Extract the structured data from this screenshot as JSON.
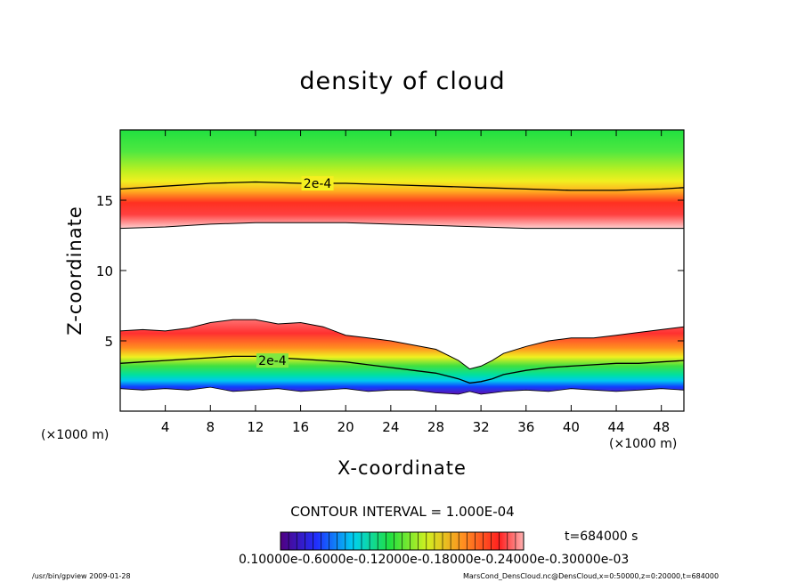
{
  "title": "density of cloud",
  "chart_data": {
    "type": "heatmap",
    "title": "density of cloud",
    "xlabel": "X-coordinate",
    "ylabel": "Z-coordinate",
    "x_unit": "(×1000 m)",
    "xlim": [
      0,
      50
    ],
    "ylim": [
      0,
      20
    ],
    "x_ticks": [
      4,
      8,
      12,
      16,
      20,
      24,
      28,
      32,
      36,
      40,
      44,
      48
    ],
    "y_ticks": [
      5,
      10,
      15
    ],
    "upper_layer": {
      "x": [
        0,
        4,
        8,
        12,
        16,
        20,
        24,
        28,
        32,
        36,
        40,
        44,
        48,
        50
      ],
      "bottom_z": [
        13.0,
        13.1,
        13.3,
        13.4,
        13.4,
        13.4,
        13.3,
        13.2,
        13.1,
        13.0,
        13.0,
        13.0,
        13.0,
        13.0
      ],
      "contour_2e4_z": [
        15.8,
        16.0,
        16.2,
        16.3,
        16.2,
        16.2,
        16.1,
        16.0,
        15.9,
        15.8,
        15.7,
        15.7,
        15.8,
        15.9
      ]
    },
    "lower_layer": {
      "x": [
        0,
        2,
        4,
        6,
        8,
        10,
        12,
        14,
        16,
        18,
        20,
        22,
        24,
        26,
        28,
        30,
        31,
        32,
        33,
        34,
        36,
        38,
        40,
        42,
        44,
        46,
        48,
        50
      ],
      "top_z": [
        5.7,
        5.8,
        5.7,
        5.9,
        6.3,
        6.5,
        6.5,
        6.2,
        6.3,
        6.0,
        5.4,
        5.2,
        5.0,
        4.7,
        4.4,
        3.6,
        3.0,
        3.2,
        3.6,
        4.1,
        4.6,
        5.0,
        5.2,
        5.2,
        5.4,
        5.6,
        5.8,
        6.0
      ],
      "contour_2e4_z": [
        3.4,
        3.5,
        3.6,
        3.7,
        3.8,
        3.9,
        3.9,
        3.8,
        3.7,
        3.6,
        3.5,
        3.3,
        3.1,
        2.9,
        2.7,
        2.3,
        2.0,
        2.1,
        2.3,
        2.6,
        2.9,
        3.1,
        3.2,
        3.3,
        3.4,
        3.4,
        3.5,
        3.6
      ],
      "bottom_z": [
        1.6,
        1.5,
        1.6,
        1.5,
        1.7,
        1.4,
        1.5,
        1.6,
        1.4,
        1.5,
        1.6,
        1.4,
        1.5,
        1.5,
        1.3,
        1.2,
        1.4,
        1.2,
        1.3,
        1.4,
        1.5,
        1.4,
        1.6,
        1.5,
        1.4,
        1.5,
        1.6,
        1.5
      ]
    },
    "contour_labels": [
      {
        "text": "2e-4",
        "x": 17.5,
        "z": 16.2
      },
      {
        "text": "2e-4",
        "x": 13.5,
        "z": 3.6
      }
    ],
    "contour_interval_text": "CONTOUR INTERVAL = 1.000E-04",
    "time_text": "t=684000 s",
    "colorbar_labels_text": "0.10000e-0.6000e-0.12000e-0.18000e-0.24000e-0.30000e-03",
    "colors": {
      "purple": "#5a10a8",
      "blue": "#1040ff",
      "cyan": "#00d8f0",
      "green": "#20e040",
      "yellow": "#f0f020",
      "orange": "#ff9020",
      "red": "#ff2020",
      "pink": "#ffd0d0"
    }
  },
  "xunit_left": "(×1000 m)",
  "xunit_right": "(×1000 m)",
  "footer_left": "/usr/bin/gpview  2009-01-28",
  "footer_right": "MarsCond_DensCloud.nc@DensCloud,x=0:50000,z=0:20000,t=684000"
}
